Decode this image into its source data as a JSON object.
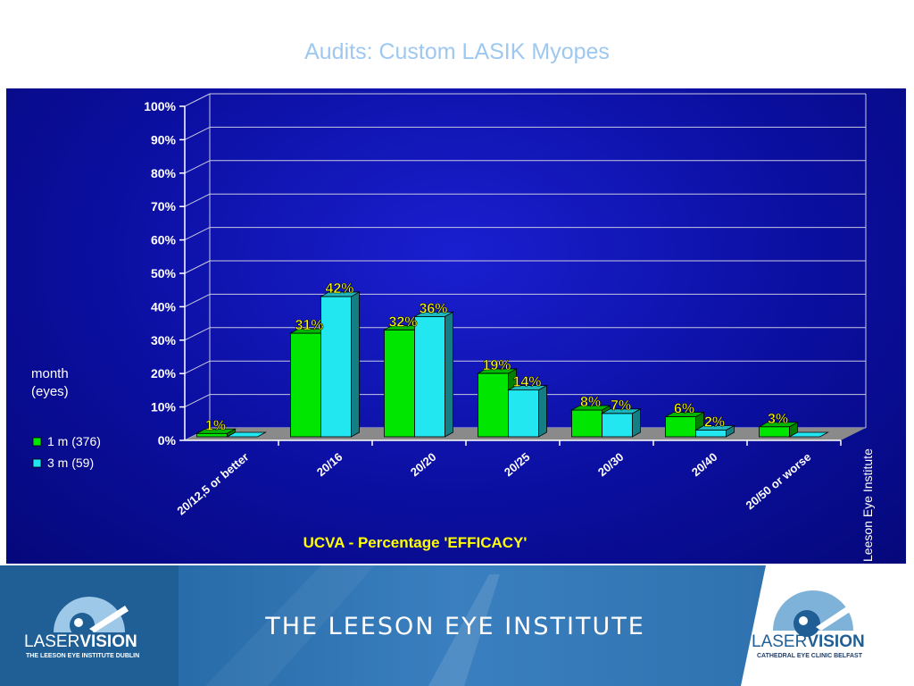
{
  "slide": {
    "title": "Audits: Custom LASIK Myopes",
    "watermark": "Leeson Eye Institute"
  },
  "chart_data": {
    "type": "bar",
    "title": "",
    "xlabel": "UCVA - Percentage 'EFFICACY'",
    "ylabel": "",
    "ylim": [
      0,
      100
    ],
    "y_ticks": [
      "0%",
      "10%",
      "20%",
      "30%",
      "40%",
      "50%",
      "60%",
      "70%",
      "80%",
      "90%",
      "100%"
    ],
    "categories": [
      "20/12,5 or better",
      "20/16",
      "20/20",
      "20/25",
      "20/30",
      "20/40",
      "20/50 or worse"
    ],
    "legend_title": [
      "month",
      "(eyes)"
    ],
    "legend_position": "left",
    "grid": true,
    "series": [
      {
        "name": "1 m (376)",
        "color": "#00e600",
        "values": [
          1,
          31,
          32,
          19,
          8,
          6,
          3
        ],
        "labels": [
          "1%",
          "31%",
          "32%",
          "19%",
          "8%",
          "6%",
          "3%"
        ]
      },
      {
        "name": "3 m (59)",
        "color": "#22e6f0",
        "values": [
          0,
          42,
          36,
          14,
          7,
          2,
          0
        ],
        "labels": [
          "",
          "42%",
          "36%",
          "14%",
          "7%",
          "2%",
          ""
        ]
      }
    ]
  },
  "footer": {
    "institute_name": "THE LEESON EYE INSTITUTE",
    "left_logo": {
      "word_light": "LASER",
      "word_bold": "VISION",
      "subtitle": "THE LEESON EYE INSTITUTE DUBLIN"
    },
    "right_logo": {
      "word_light": "LASER",
      "word_bold": "VISION",
      "subtitle": "CATHEDRAL EYE CLINIC BELFAST"
    },
    "colors": {
      "banner": "#2a6ca8",
      "logo_text": "#1f5f96"
    }
  }
}
